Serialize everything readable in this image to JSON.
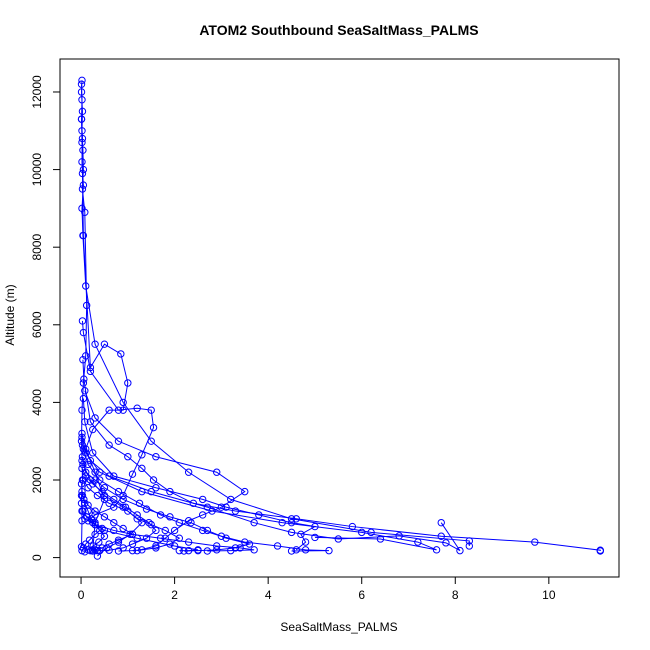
{
  "chart_data": {
    "type": "scatter",
    "title": "ATOM2 Southbound SeaSaltMass_PALMS",
    "xlabel": "SeaSaltMass_PALMS",
    "ylabel": "Altitude (m)",
    "xlim": [
      -0.45,
      11.5
    ],
    "ylim": [
      -500,
      12850
    ],
    "x_ticks": [
      0,
      2,
      4,
      6,
      8,
      10
    ],
    "y_ticks": [
      0,
      2000,
      4000,
      6000,
      8000,
      10000,
      12000
    ],
    "x_tick_labels": [
      "0",
      "2",
      "4",
      "6",
      "8",
      "10"
    ],
    "y_tick_labels": [
      "0",
      "2000",
      "4000",
      "6000",
      "8000",
      "10000",
      "12000"
    ],
    "grid": false,
    "legend": "none",
    "marker": "open-circle",
    "connected": true,
    "color": "#0000ff",
    "series": [
      {
        "x": [
          0.02,
          0.01,
          0.03,
          0.02,
          0.04,
          0.05,
          0.03,
          0.08,
          0.12,
          0.1,
          0.05,
          0.02,
          0.01,
          0.02,
          0.03,
          0.01,
          0.02,
          0.01
        ],
        "y": [
          12300,
          12000,
          11500,
          11000,
          10500,
          10000,
          9500,
          8900,
          6500,
          5200,
          4500,
          3800,
          3000,
          2500,
          2000,
          1600,
          950,
          280
        ]
      },
      {
        "x": [
          0.01,
          0.02,
          0.01,
          0.03,
          0.02,
          0.05,
          0.02,
          0.04,
          0.1,
          0.3,
          0.9,
          1.5,
          2.3,
          3.2,
          4.5,
          6.2,
          8.3,
          8.3
        ],
        "y": [
          12200,
          11800,
          11300,
          10800,
          10200,
          9600,
          9000,
          8300,
          7000,
          5500,
          4000,
          3000,
          2200,
          1500,
          1000,
          650,
          430,
          300
        ]
      },
      {
        "x": [
          0.01,
          0.02,
          0.03,
          0.05,
          0.2,
          0.5,
          0.85,
          1.0,
          0.9,
          0.6,
          0.25,
          0.1,
          0.3,
          0.5,
          0.3,
          0.25,
          0.35
        ],
        "y": [
          11300,
          10700,
          9900,
          8300,
          4900,
          5500,
          5250,
          4500,
          3800,
          3800,
          3300,
          2800,
          2200,
          1500,
          900,
          200,
          180
        ]
      },
      {
        "x": [
          0.03,
          0.05,
          0.2,
          0.8,
          1.2,
          1.5,
          1.55,
          1.3,
          1.1,
          0.9,
          0.7,
          0.3,
          0.15,
          0.5,
          1.2,
          2.0,
          2.5,
          2.3,
          2.1
        ],
        "y": [
          6100,
          5800,
          4800,
          3800,
          3850,
          3800,
          3350,
          2650,
          2150,
          1600,
          1300,
          1100,
          950,
          700,
          500,
          300,
          200,
          180,
          180
        ]
      },
      {
        "x": [
          0.04,
          0.06,
          0.2,
          0.6,
          1.0,
          1.3,
          1.55,
          1.9,
          2.4,
          3.3,
          4.6,
          5.8,
          7.7,
          9.7,
          11.1,
          11.1
        ],
        "y": [
          5100,
          4600,
          3500,
          2900,
          2600,
          2300,
          2000,
          1700,
          1400,
          1200,
          1000,
          800,
          550,
          400,
          190,
          170
        ]
      },
      {
        "x": [
          0.05,
          0.08,
          0.25,
          0.7,
          1.6,
          2.6,
          3.1,
          3.8,
          4.5,
          5.0,
          4.7,
          4.8,
          4.6
        ],
        "y": [
          4100,
          3500,
          2700,
          2100,
          1800,
          1500,
          1300,
          1100,
          900,
          800,
          600,
          400,
          200
        ]
      },
      {
        "x": [
          0.02,
          0.05,
          0.15,
          0.4,
          0.8,
          1.25,
          1.7,
          2.1,
          2.6,
          3.0,
          3.5,
          4.2,
          4.8,
          5.3,
          4.5
        ],
        "y": [
          3100,
          2800,
          2400,
          2000,
          1700,
          1400,
          1100,
          900,
          700,
          550,
          400,
          300,
          200,
          180,
          170
        ]
      },
      {
        "x": [
          0.03,
          0.1,
          0.3,
          0.5,
          0.9,
          1.4,
          1.9,
          2.35,
          2.7,
          3.1,
          3.6,
          3.3,
          2.9,
          2.5,
          2.2
        ],
        "y": [
          2600,
          2200,
          2000,
          1800,
          1500,
          1250,
          1050,
          900,
          700,
          500,
          350,
          250,
          200,
          180,
          170
        ]
      },
      {
        "x": [
          0.05,
          0.15,
          0.35,
          0.6,
          1.0,
          1.2,
          1.5,
          1.8,
          2.1,
          1.9,
          1.6,
          1.3,
          1.1,
          0.8
        ],
        "y": [
          2000,
          1800,
          1600,
          1400,
          1200,
          1000,
          850,
          700,
          500,
          350,
          250,
          200,
          180,
          170
        ]
      },
      {
        "x": [
          0.02,
          0.06,
          0.15,
          0.3,
          0.5,
          0.7,
          0.9,
          1.1,
          0.8,
          0.6,
          0.45,
          0.3,
          0.2
        ],
        "y": [
          1700,
          1500,
          1350,
          1200,
          1050,
          900,
          750,
          600,
          450,
          350,
          250,
          200,
          180
        ]
      },
      {
        "x": [
          0.01,
          0.04,
          0.12,
          0.25,
          0.45,
          0.3,
          0.18,
          0.1,
          0.05,
          0.02
        ],
        "y": [
          1400,
          1200,
          1050,
          900,
          750,
          600,
          450,
          350,
          250,
          180
        ]
      },
      {
        "x": [
          0.02,
          0.1,
          0.4,
          1.3,
          2.8,
          4.3,
          6.0,
          7.2,
          7.6,
          6.4,
          5.0
        ],
        "y": [
          3200,
          2700,
          2200,
          1700,
          1200,
          900,
          650,
          400,
          200,
          480,
          520
        ]
      },
      {
        "x": [
          0.03,
          0.2,
          0.6,
          1.5,
          2.7,
          3.7,
          4.5,
          5.5,
          6.8,
          7.8,
          8.1,
          7.7
        ],
        "y": [
          2900,
          2500,
          2100,
          1700,
          1300,
          900,
          650,
          480,
          560,
          380,
          180,
          900
        ]
      },
      {
        "x": [
          0.08,
          0.3,
          0.8,
          1.6,
          2.9,
          3.5,
          3.0,
          2.6,
          2.3,
          2.0,
          1.8,
          1.6,
          1.2
        ],
        "y": [
          4300,
          3600,
          3000,
          2600,
          2200,
          1700,
          1300,
          1100,
          950,
          700,
          500,
          300,
          180
        ]
      },
      {
        "x": [
          0.02,
          0.1,
          0.25,
          0.45,
          0.7,
          0.95,
          1.2,
          1.45,
          1.6,
          1.4,
          1.1,
          0.9,
          0.6,
          0.4,
          0.25
        ],
        "y": [
          2300,
          2100,
          1900,
          1700,
          1500,
          1300,
          1100,
          900,
          700,
          500,
          350,
          250,
          190,
          180,
          170
        ]
      },
      {
        "x": [
          0.01,
          0.03,
          0.08,
          0.15,
          0.22,
          0.3,
          0.4,
          0.5,
          0.38,
          0.26,
          0.15,
          0.08
        ],
        "y": [
          1900,
          1600,
          1400,
          1200,
          1000,
          850,
          700,
          550,
          400,
          300,
          200,
          150
        ]
      },
      {
        "x": [
          0.04,
          0.2,
          0.5,
          0.9,
          1.3,
          1.05,
          0.8,
          0.55,
          0.35
        ],
        "y": [
          2400,
          2000,
          1600,
          1300,
          900,
          600,
          400,
          250,
          40
        ]
      },
      {
        "x": [
          0.02,
          0.08,
          0.3,
          0.7,
          1.1,
          1.7,
          2.3,
          2.9,
          3.4,
          3.7,
          3.2,
          2.7
        ],
        "y": [
          1200,
          1000,
          850,
          700,
          600,
          500,
          400,
          300,
          250,
          200,
          180,
          170
        ]
      }
    ]
  }
}
